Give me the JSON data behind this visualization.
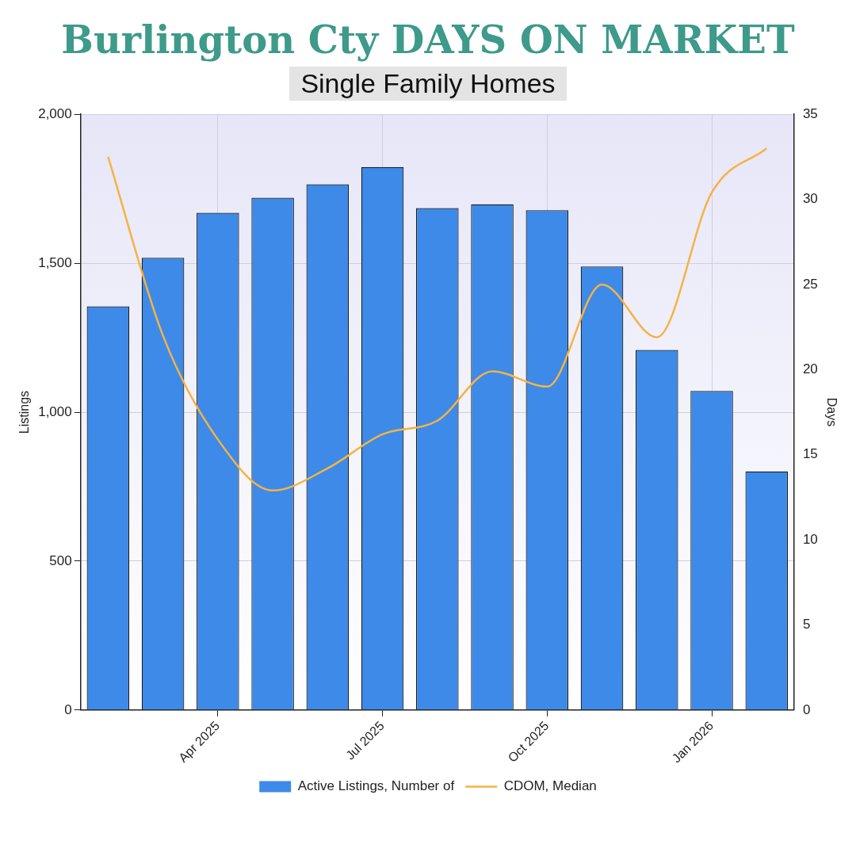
{
  "chart_data": {
    "type": "bar",
    "title": "Burlington Cty DAYS ON MARKET",
    "subtitle": "Single Family Homes",
    "ylabel": "Listings",
    "y2label": "Days",
    "categories": [
      null,
      null,
      "Apr 2025",
      null,
      null,
      "Jul 2025",
      null,
      null,
      "Oct 2025",
      null,
      null,
      "Jan 2026",
      null
    ],
    "series": [
      {
        "name": "Active Listings, Number of",
        "color": "#3d8ae8",
        "values": [
          1355,
          1518,
          1669,
          1720,
          1765,
          1823,
          1685,
          1698,
          1678,
          1489,
          1209,
          1071,
          801
        ]
      },
      {
        "name": "CDOM, Median",
        "type": "line",
        "axis": "y2",
        "color": "#f5b342",
        "values": [
          32.5,
          22,
          15.9,
          12.9,
          14.2,
          16.2,
          17,
          19.9,
          19,
          25,
          21.9,
          30.4,
          33
        ]
      }
    ],
    "ylim": [
      0,
      2000
    ],
    "yticks": [
      0,
      500,
      {
        "value": 1000,
        "label": "1,000"
      },
      {
        "value": 1500,
        "label": "1,500"
      },
      {
        "value": 2000,
        "label": "2,000"
      }
    ],
    "y2lim": [
      0,
      35
    ],
    "y2ticks": [
      0,
      5,
      10,
      15,
      20,
      25,
      30,
      35
    ],
    "grid": true,
    "legend": "bottom",
    "marker": "none",
    "line_style": "solid"
  }
}
